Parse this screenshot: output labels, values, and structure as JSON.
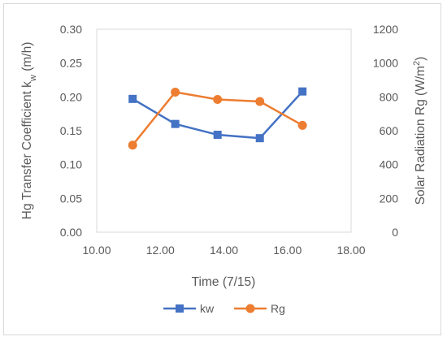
{
  "chart_data": {
    "type": "line",
    "title": "",
    "xlabel": "Time (7/15)",
    "ylabel": "Hg Transfer Coefficient k",
    "ylabel_subscript": "w",
    "ylabel_unit": " (m/h)",
    "y2label": "Solar Radiation Rg (W/m",
    "y2label_superscript": "2",
    "y2label_close": ")",
    "xlim": [
      10,
      18
    ],
    "ylim": [
      0,
      0.3
    ],
    "y2lim": [
      0,
      1200
    ],
    "x_ticks": [
      "10.00",
      "12.00",
      "14.00",
      "16.00",
      "18.00"
    ],
    "y_ticks": [
      "0.00",
      "0.05",
      "0.10",
      "0.15",
      "0.20",
      "0.25",
      "0.30"
    ],
    "y2_ticks": [
      "0",
      "200",
      "400",
      "600",
      "800",
      "1000",
      "1200"
    ],
    "grid": false,
    "legend_position": "bottom",
    "series": [
      {
        "name": "kw",
        "axis": "left",
        "marker": "square",
        "color": "#4472c4",
        "x": [
          11.13,
          12.47,
          13.8,
          15.13,
          16.47
        ],
        "y": [
          0.197,
          0.16,
          0.144,
          0.139,
          0.208
        ]
      },
      {
        "name": "Rg",
        "axis": "right",
        "marker": "circle",
        "color": "#ed7d31",
        "x": [
          11.13,
          12.47,
          13.8,
          15.13,
          16.47
        ],
        "y": [
          515,
          828,
          785,
          773,
          632
        ]
      }
    ]
  }
}
